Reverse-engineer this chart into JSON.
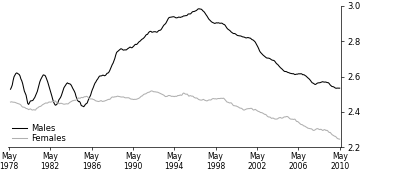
{
  "title": "",
  "ylim": [
    2.2,
    3.0
  ],
  "yticks": [
    2.2,
    2.4,
    2.6,
    2.8,
    3.0
  ],
  "xtick_years": [
    1978,
    1982,
    1986,
    1990,
    1994,
    1998,
    2002,
    2006,
    2010
  ],
  "xtick_labels": [
    "May\n1978",
    "May\n1982",
    "May\n1986",
    "May\n1990",
    "May\n1994",
    "May\n1998",
    "May\n2002",
    "May\n2006",
    "May\n2010"
  ],
  "males_color": "#000000",
  "females_color": "#b0b0b0",
  "legend_males": "Males",
  "legend_females": "Females",
  "background_color": "#ffffff",
  "figsize": [
    3.97,
    1.89
  ],
  "dpi": 100
}
